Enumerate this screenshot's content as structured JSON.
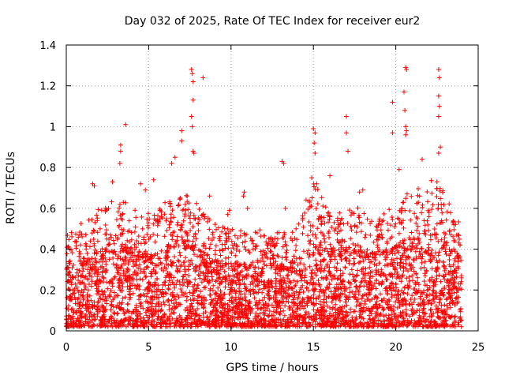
{
  "chart_data": {
    "type": "scatter",
    "title": "Day 032 of 2025, Rate Of TEC Index for receiver eur2",
    "xlabel": "GPS time / hours",
    "ylabel": "ROTI / TECUs",
    "xlim": [
      0,
      25
    ],
    "ylim": [
      0,
      1.4
    ],
    "xticks": [
      0,
      5,
      10,
      15,
      20,
      25
    ],
    "xtick_labels": [
      "0",
      "5",
      "10",
      "15",
      "20",
      "25"
    ],
    "yticks": [
      0,
      0.2,
      0.4,
      0.6,
      0.8,
      1.0,
      1.2,
      1.4
    ],
    "ytick_labels": [
      "0",
      "0.2",
      "0.4",
      "0.6",
      "0.8",
      "1",
      "1.2",
      "1.4"
    ],
    "grid": true,
    "marker": "+",
    "marker_color": "#ff0000",
    "series": [
      {
        "name": "ROTI",
        "x_range": [
          0,
          24
        ],
        "typical_range": [
          0.02,
          0.45
        ],
        "notable_points": [
          {
            "x": 7.6,
            "y": 1.28
          },
          {
            "x": 7.65,
            "y": 1.26
          },
          {
            "x": 7.7,
            "y": 1.22
          },
          {
            "x": 8.3,
            "y": 1.24
          },
          {
            "x": 7.7,
            "y": 1.13
          },
          {
            "x": 7.6,
            "y": 1.05
          },
          {
            "x": 7.65,
            "y": 1.0
          },
          {
            "x": 7.7,
            "y": 0.88
          },
          {
            "x": 7.75,
            "y": 0.87
          },
          {
            "x": 7.0,
            "y": 0.98
          },
          {
            "x": 7.0,
            "y": 0.93
          },
          {
            "x": 6.6,
            "y": 0.85
          },
          {
            "x": 6.4,
            "y": 0.82
          },
          {
            "x": 3.6,
            "y": 1.01
          },
          {
            "x": 3.3,
            "y": 0.91
          },
          {
            "x": 3.3,
            "y": 0.88
          },
          {
            "x": 3.25,
            "y": 0.82
          },
          {
            "x": 1.6,
            "y": 0.72
          },
          {
            "x": 1.7,
            "y": 0.71
          },
          {
            "x": 2.8,
            "y": 0.73
          },
          {
            "x": 13.1,
            "y": 0.83
          },
          {
            "x": 13.2,
            "y": 0.82
          },
          {
            "x": 13.3,
            "y": 0.6
          },
          {
            "x": 15.0,
            "y": 0.99
          },
          {
            "x": 15.1,
            "y": 0.97
          },
          {
            "x": 15.05,
            "y": 0.92
          },
          {
            "x": 15.1,
            "y": 0.87
          },
          {
            "x": 17.0,
            "y": 1.05
          },
          {
            "x": 17.0,
            "y": 0.97
          },
          {
            "x": 17.1,
            "y": 0.88
          },
          {
            "x": 16.0,
            "y": 0.76
          },
          {
            "x": 19.8,
            "y": 1.12
          },
          {
            "x": 19.8,
            "y": 0.97
          },
          {
            "x": 20.6,
            "y": 1.29
          },
          {
            "x": 20.65,
            "y": 1.28
          },
          {
            "x": 20.5,
            "y": 1.17
          },
          {
            "x": 20.55,
            "y": 1.08
          },
          {
            "x": 20.6,
            "y": 1.0
          },
          {
            "x": 20.65,
            "y": 0.98
          },
          {
            "x": 20.6,
            "y": 0.96
          },
          {
            "x": 20.2,
            "y": 0.79
          },
          {
            "x": 21.6,
            "y": 0.84
          },
          {
            "x": 22.6,
            "y": 1.28
          },
          {
            "x": 22.65,
            "y": 1.24
          },
          {
            "x": 22.6,
            "y": 1.15
          },
          {
            "x": 22.65,
            "y": 1.1
          },
          {
            "x": 22.6,
            "y": 1.05
          },
          {
            "x": 22.7,
            "y": 0.9
          },
          {
            "x": 22.6,
            "y": 0.87
          },
          {
            "x": 22.5,
            "y": 0.73
          },
          {
            "x": 10.8,
            "y": 0.68
          },
          {
            "x": 10.75,
            "y": 0.66
          },
          {
            "x": 11.0,
            "y": 0.6
          },
          {
            "x": 9.8,
            "y": 0.57
          },
          {
            "x": 9.9,
            "y": 0.59
          },
          {
            "x": 8.7,
            "y": 0.66
          },
          {
            "x": 5.3,
            "y": 0.74
          },
          {
            "x": 4.8,
            "y": 0.69
          },
          {
            "x": 4.5,
            "y": 0.72
          },
          {
            "x": 23.9,
            "y": 0.42
          },
          {
            "x": 18.0,
            "y": 0.69
          },
          {
            "x": 17.8,
            "y": 0.68
          },
          {
            "x": 14.9,
            "y": 0.75
          },
          {
            "x": 15.2,
            "y": 0.72
          },
          {
            "x": 12.8,
            "y": 0.48
          },
          {
            "x": 2.4,
            "y": 0.59
          },
          {
            "x": 0.1,
            "y": 0.41
          },
          {
            "x": 0.2,
            "y": 0.4
          }
        ]
      }
    ]
  }
}
